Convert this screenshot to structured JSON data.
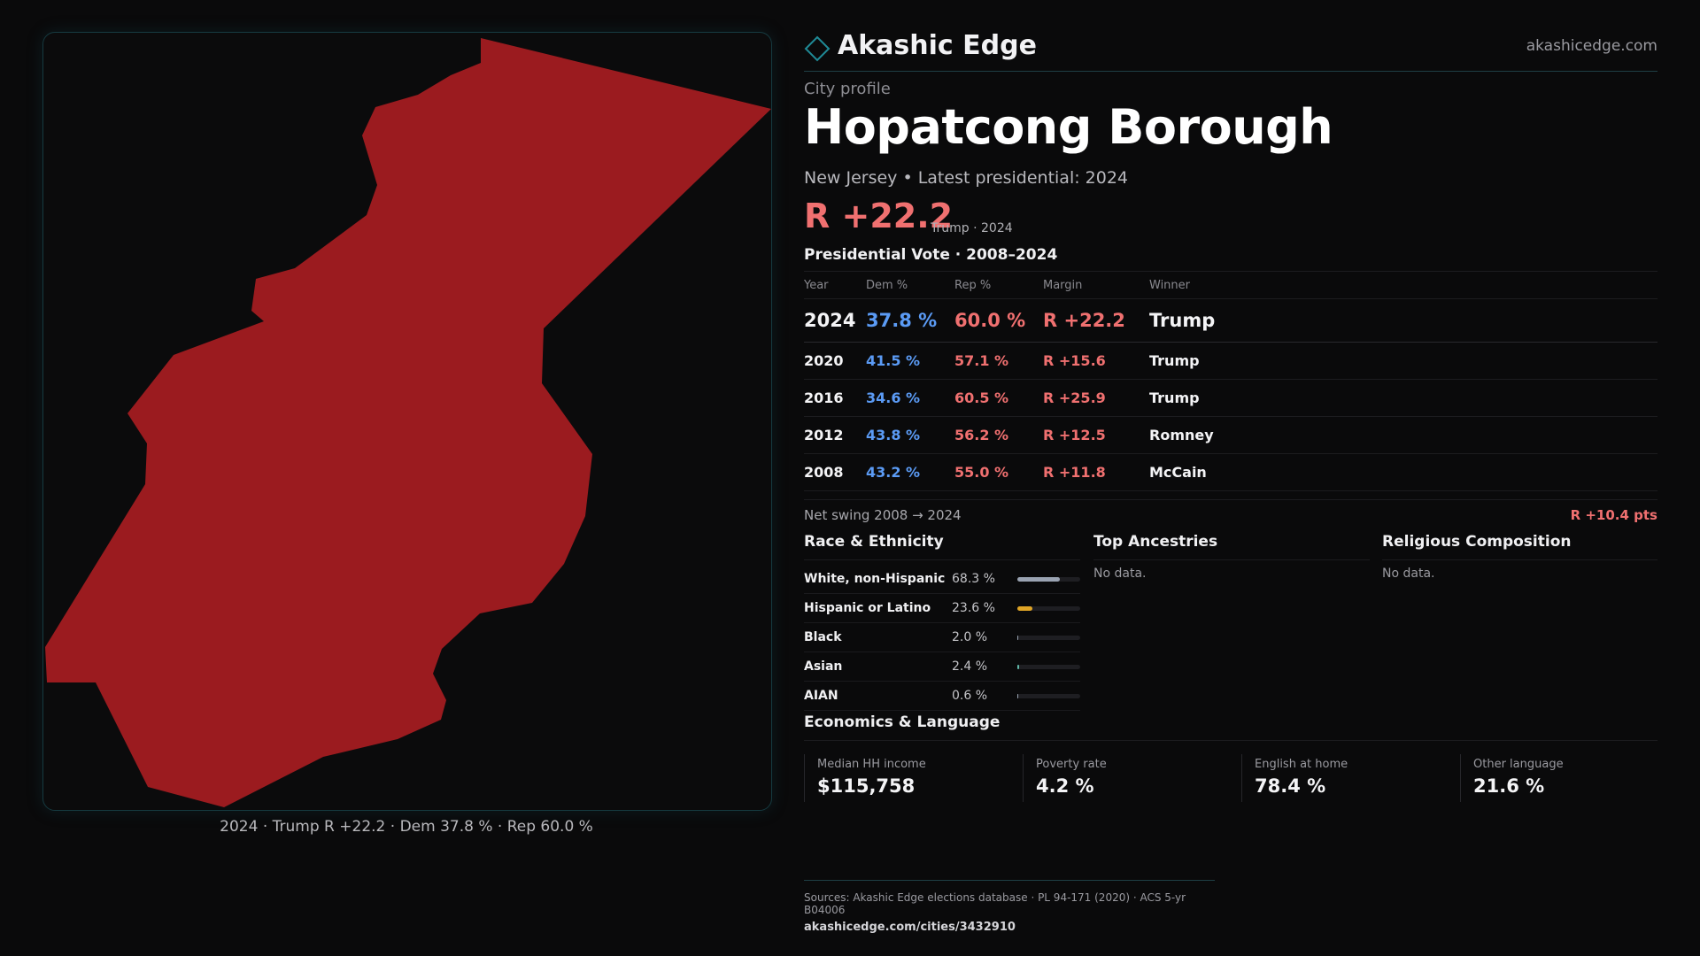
{
  "brand": {
    "name": "Akashic Edge",
    "url": "akashicedge.com"
  },
  "map": {
    "fill_color": "#9b1b1f",
    "caption": "2024 · Trump R +22.2 · Dem 37.8 % · Rep 60.0 %"
  },
  "profile": {
    "eyebrow": "City profile",
    "name": "Hopatcong Borough",
    "subline": "New Jersey • Latest presidential: 2024",
    "headline_margin": "R +22.2",
    "headline_note": "Trump · 2024"
  },
  "presidential": {
    "title": "Presidential Vote · 2008–2024",
    "columns": [
      "Year",
      "Dem %",
      "Rep %",
      "Margin",
      "Winner"
    ],
    "rows": [
      {
        "year": "2024",
        "dem": "37.8 %",
        "rep": "60.0 %",
        "margin": "R +22.2",
        "winner": "Trump"
      },
      {
        "year": "2020",
        "dem": "41.5 %",
        "rep": "57.1 %",
        "margin": "R +15.6",
        "winner": "Trump"
      },
      {
        "year": "2016",
        "dem": "34.6 %",
        "rep": "60.5 %",
        "margin": "R +25.9",
        "winner": "Trump"
      },
      {
        "year": "2012",
        "dem": "43.8 %",
        "rep": "56.2 %",
        "margin": "R +12.5",
        "winner": "Romney"
      },
      {
        "year": "2008",
        "dem": "43.2 %",
        "rep": "55.0 %",
        "margin": "R +11.8",
        "winner": "McCain"
      }
    ],
    "swing_label": "Net swing 2008 → 2024",
    "swing_value": "R +10.4 pts"
  },
  "race": {
    "title": "Race & Ethnicity",
    "items": [
      {
        "label": "White, non-Hispanic",
        "pct": "68.3 %",
        "value": 68.3,
        "color": "#9aa3b2"
      },
      {
        "label": "Hispanic or Latino",
        "pct": "23.6 %",
        "value": 23.6,
        "color": "#e0a526"
      },
      {
        "label": "Black",
        "pct": "2.0 %",
        "value": 2.0,
        "color": "#9aa3b2"
      },
      {
        "label": "Asian",
        "pct": "2.4 %",
        "value": 2.4,
        "color": "#5fb8a8"
      },
      {
        "label": "AIAN",
        "pct": "0.6 %",
        "value": 0.6,
        "color": "#9aa3b2"
      }
    ]
  },
  "ancestries": {
    "title": "Top Ancestries",
    "empty": "No data."
  },
  "religion": {
    "title": "Religious Composition",
    "empty": "No data."
  },
  "economics": {
    "title": "Economics & Language",
    "stats": [
      {
        "label": "Median HH income",
        "value": "$115,758"
      },
      {
        "label": "Poverty rate",
        "value": "4.2 %"
      },
      {
        "label": "English at home",
        "value": "78.4 %"
      },
      {
        "label": "Other language",
        "value": "21.6 %"
      }
    ]
  },
  "footer": {
    "sources": "Sources: Akashic Edge elections database · PL 94-171 (2020) · ACS 5-yr B04006",
    "link": "akashicedge.com/cities/3432910"
  }
}
